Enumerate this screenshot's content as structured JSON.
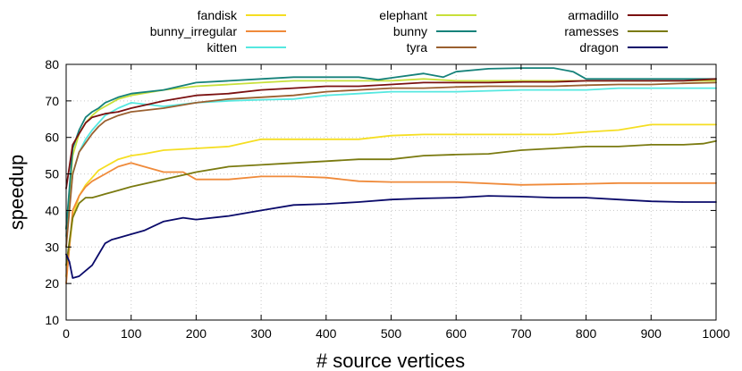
{
  "chart_data": {
    "type": "line",
    "title": "",
    "xlabel": "# source vertices",
    "ylabel": "speedup",
    "xlim": [
      0,
      1000
    ],
    "ylim": [
      10,
      80
    ],
    "xticks": [
      0,
      100,
      200,
      300,
      400,
      500,
      600,
      700,
      800,
      900,
      1000
    ],
    "yticks": [
      10,
      20,
      30,
      40,
      50,
      60,
      70,
      80
    ],
    "grid": true,
    "legend_position": "top",
    "series": [
      {
        "name": "fandisk",
        "color": "#f5de22",
        "x": [
          0,
          10,
          20,
          30,
          40,
          50,
          60,
          80,
          100,
          120,
          150,
          200,
          250,
          300,
          350,
          400,
          450,
          500,
          550,
          600,
          650,
          700,
          750,
          800,
          850,
          900,
          950,
          1000
        ],
        "y": [
          22,
          38,
          44,
          47,
          49,
          51,
          52,
          54,
          55,
          55.5,
          56.5,
          57,
          57.5,
          59.5,
          59.5,
          59.5,
          59.5,
          60.5,
          60.8,
          60.8,
          60.8,
          60.8,
          60.8,
          61.5,
          62,
          63.5,
          63.5,
          63.5
        ]
      },
      {
        "name": "bunny_irregular",
        "color": "#ef8a3a",
        "x": [
          0,
          10,
          20,
          30,
          40,
          50,
          60,
          80,
          100,
          120,
          150,
          180,
          200,
          250,
          300,
          350,
          400,
          450,
          500,
          600,
          700,
          800,
          850,
          900,
          950,
          1000
        ],
        "y": [
          20,
          40,
          44,
          46.5,
          48,
          49,
          50,
          52,
          53,
          52,
          50.5,
          50.5,
          48.5,
          48.5,
          49.3,
          49.3,
          49,
          48,
          47.8,
          47.8,
          47,
          47.3,
          47.5,
          47.5,
          47.5,
          47.5
        ]
      },
      {
        "name": "kitten",
        "color": "#55e8e0",
        "x": [
          0,
          10,
          20,
          30,
          40,
          50,
          60,
          80,
          100,
          150,
          200,
          250,
          300,
          350,
          400,
          450,
          500,
          600,
          700,
          800,
          850,
          900,
          950,
          1000
        ],
        "y": [
          33,
          50,
          56,
          59.5,
          62,
          64,
          66,
          68,
          69.5,
          68.5,
          69.5,
          70,
          70.3,
          70.5,
          71.5,
          72,
          72.5,
          72.5,
          73,
          73,
          73.5,
          73.5,
          73.5,
          73.5
        ]
      },
      {
        "name": "elephant",
        "color": "#c8e03a",
        "x": [
          0,
          10,
          20,
          30,
          40,
          50,
          60,
          80,
          100,
          150,
          200,
          250,
          300,
          350,
          400,
          450,
          500,
          550,
          600,
          650,
          700,
          800,
          900,
          1000
        ],
        "y": [
          35,
          55,
          61,
          64,
          66,
          67.5,
          68.5,
          70.5,
          71.5,
          73,
          74,
          74.5,
          75,
          75.5,
          75.5,
          75.5,
          75.5,
          76,
          75.5,
          75.5,
          75.5,
          75.5,
          75.5,
          75.5
        ]
      },
      {
        "name": "bunny",
        "color": "#16827a",
        "x": [
          0,
          10,
          20,
          30,
          40,
          50,
          60,
          80,
          100,
          150,
          200,
          250,
          300,
          350,
          400,
          450,
          480,
          500,
          550,
          580,
          600,
          650,
          700,
          750,
          780,
          800,
          850,
          900,
          950,
          1000
        ],
        "y": [
          35,
          57,
          62,
          65.5,
          67,
          68,
          69.5,
          71,
          72,
          73,
          75,
          75.5,
          76,
          76.5,
          76.5,
          76.5,
          75.8,
          76.3,
          77.5,
          76.5,
          78,
          78.8,
          79,
          79,
          78,
          76,
          76,
          76,
          76,
          76
        ]
      },
      {
        "name": "tyra",
        "color": "#9a6030",
        "x": [
          0,
          10,
          20,
          30,
          40,
          50,
          60,
          80,
          100,
          150,
          200,
          250,
          300,
          350,
          400,
          450,
          500,
          550,
          600,
          650,
          700,
          750,
          800,
          850,
          900,
          950,
          1000
        ],
        "y": [
          30,
          50,
          56,
          58.5,
          61,
          63,
          64.5,
          66,
          67,
          68,
          69.5,
          70.5,
          71,
          71.5,
          72.5,
          73,
          73.5,
          73.5,
          73.8,
          74,
          74,
          74,
          74.3,
          74.5,
          74.5,
          74.8,
          75
        ]
      },
      {
        "name": "armadillo",
        "color": "#7a1010",
        "x": [
          0,
          10,
          20,
          30,
          40,
          50,
          60,
          80,
          100,
          150,
          200,
          250,
          300,
          350,
          400,
          450,
          500,
          550,
          600,
          650,
          700,
          750,
          800,
          850,
          900,
          950,
          1000
        ],
        "y": [
          46,
          58,
          61,
          64,
          65.5,
          66,
          66.5,
          67,
          68,
          70,
          71.5,
          72,
          73,
          73.5,
          74,
          74,
          74.5,
          75,
          75,
          75,
          75.2,
          75.2,
          75.5,
          75.5,
          75.5,
          75.5,
          76
        ]
      },
      {
        "name": "ramesses",
        "color": "#7a7a10",
        "x": [
          0,
          10,
          20,
          30,
          40,
          50,
          60,
          80,
          100,
          150,
          200,
          250,
          300,
          350,
          400,
          450,
          500,
          550,
          600,
          650,
          700,
          750,
          800,
          850,
          900,
          950,
          980,
          1000
        ],
        "y": [
          25,
          38,
          42,
          43.5,
          43.5,
          44,
          44.5,
          45.5,
          46.5,
          48.5,
          50.5,
          52,
          52.5,
          53,
          53.5,
          54,
          54,
          55,
          55.3,
          55.5,
          56.5,
          57,
          57.5,
          57.5,
          58,
          58,
          58.3,
          59
        ]
      },
      {
        "name": "dragon",
        "color": "#0a0a6a",
        "x": [
          0,
          5,
          10,
          20,
          30,
          40,
          50,
          60,
          70,
          80,
          100,
          120,
          150,
          180,
          200,
          250,
          300,
          350,
          400,
          450,
          500,
          550,
          600,
          650,
          700,
          750,
          800,
          850,
          900,
          950,
          1000
        ],
        "y": [
          28,
          26,
          21.5,
          22,
          23.5,
          25,
          28,
          31,
          32,
          32.5,
          33.5,
          34.5,
          37,
          38,
          37.5,
          38.5,
          40,
          41.5,
          41.8,
          42.3,
          43,
          43.3,
          43.5,
          44,
          43.8,
          43.5,
          43.5,
          43,
          42.5,
          42.3,
          42.3
        ]
      }
    ]
  }
}
